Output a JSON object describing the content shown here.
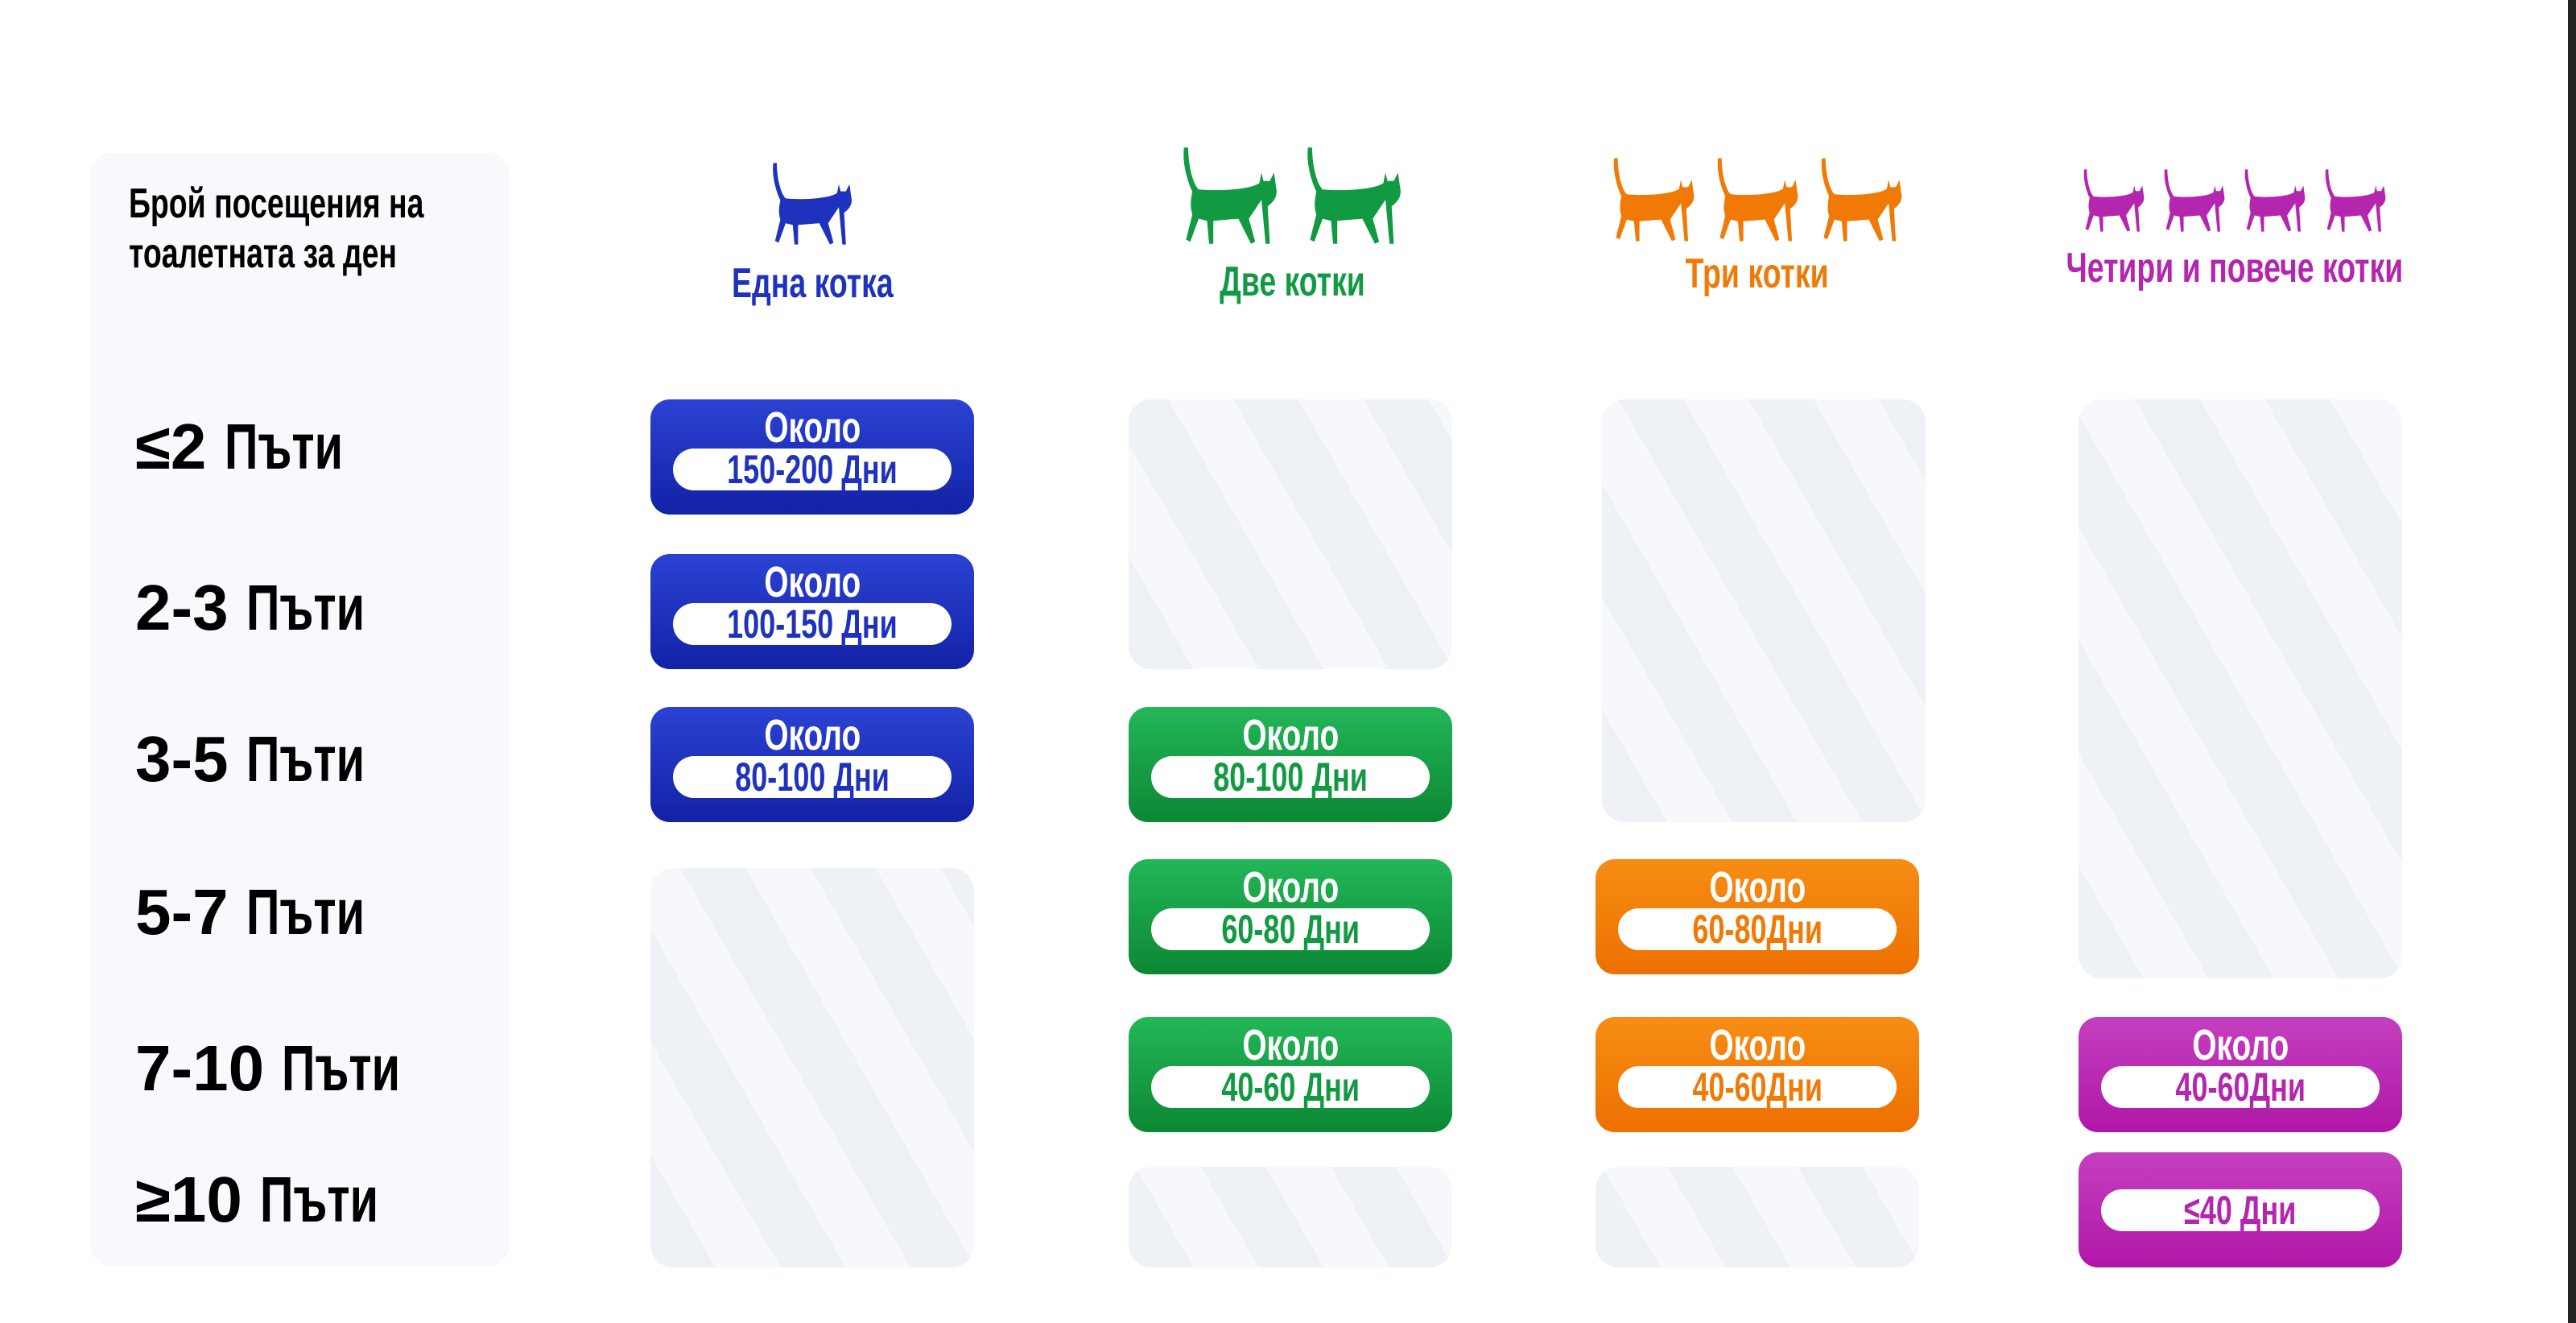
{
  "colors": {
    "blue": "#1e32be",
    "green": "#129a42",
    "orange": "#f07a05",
    "magenta": "#b526ae"
  },
  "left_header": {
    "line1": "Брой посещения на",
    "line2": "тоалетната за ден"
  },
  "rows": [
    {
      "num": "≤2",
      "unit": "Пъти"
    },
    {
      "num": "2-3",
      "unit": "Пъти"
    },
    {
      "num": "3-5",
      "unit": "Пъти"
    },
    {
      "num": "5-7",
      "unit": "Пъти"
    },
    {
      "num": "7-10",
      "unit": "Пъти"
    },
    {
      "num": "≥10",
      "unit": "Пъти"
    }
  ],
  "columns": [
    {
      "title": "Една котка",
      "cat_count": 1,
      "icon": "cat-icon"
    },
    {
      "title": "Две котки",
      "cat_count": 2,
      "icon": "cat-icon"
    },
    {
      "title": "Три котки",
      "cat_count": 3,
      "icon": "cat-icon"
    },
    {
      "title": "Четири и повече котки",
      "cat_count": 4,
      "icon": "cat-icon"
    }
  ],
  "badge_about": "Около",
  "badge_unit": "Дни",
  "cells": {
    "c1": [
      {
        "range": "150-200"
      },
      {
        "range": "100-150"
      },
      {
        "range": "80-100"
      }
    ],
    "c2": [
      {
        "range": "80-100"
      },
      {
        "range": "60-80"
      },
      {
        "range": "40-60"
      }
    ],
    "c3": [
      {
        "range": "60-80"
      },
      {
        "range": "40-60"
      }
    ],
    "c4": [
      {
        "range": "40-60"
      },
      {
        "range": "≤40"
      }
    ]
  }
}
